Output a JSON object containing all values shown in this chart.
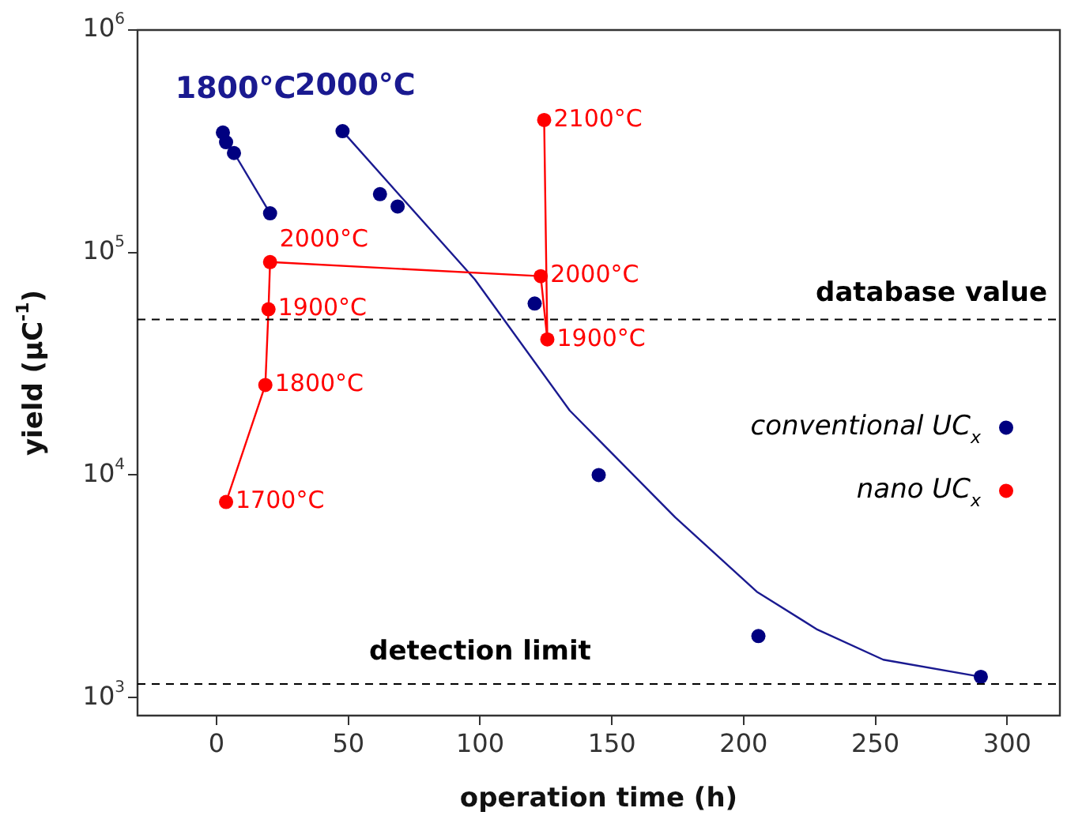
{
  "chart_data": {
    "type": "scatter",
    "xlabel": "operation time (h)",
    "ylabel": "yield (µC$^{-1}$)",
    "xlim": [
      -30,
      320
    ],
    "xticks": [
      0,
      50,
      100,
      150,
      200,
      250,
      300
    ],
    "ylim": [
      830,
      1000000
    ],
    "log": "y",
    "yticks": [
      {
        "value": 1000,
        "label": "10$^{3}$"
      },
      {
        "value": 10000,
        "label": "10$^{4}$"
      },
      {
        "value": 100000,
        "label": "10$^{5}$"
      },
      {
        "value": 1000000,
        "label": "10$^{6}$"
      }
    ],
    "grid": false,
    "legend": "right",
    "series": [
      {
        "name": "conventional UC$_{x}$",
        "marker": "circle",
        "color": "#000080",
        "x": [
          2.4,
          3.6,
          6.6,
          20.3,
          47.8,
          62,
          68.7,
          120.7,
          145,
          205.6,
          290
        ],
        "values": [
          346000,
          313000,
          280000,
          150000,
          351000,
          183000,
          161000,
          59000,
          10000,
          1890,
          1240
        ]
      },
      {
        "name": "nano UC$_{x}$",
        "type": "line",
        "marker": "circle",
        "color": "#ff0000",
        "x": [
          3.6,
          18.5,
          19.7,
          20.3,
          123,
          125.5,
          124.3
        ],
        "values": [
          7570,
          25400,
          55600,
          90600,
          78300,
          40700,
          394000
        ]
      },
      {
        "name": "1800°C",
        "type": "line",
        "marker": "none",
        "color": "#1a1a90",
        "x": [
          2.4,
          20.3
        ],
        "values": [
          340000,
          150000
        ]
      },
      {
        "name": "2000°C",
        "type": "line",
        "marker": "none",
        "color": "#1a1a90",
        "x": [
          47.8,
          70,
          98,
          134,
          174,
          205,
          228,
          253,
          290
        ],
        "values": [
          351000,
          178000,
          75700,
          19500,
          6460,
          2990,
          2020,
          1480,
          1240
        ]
      }
    ],
    "ref_lines": [
      {
        "axis": "y",
        "value": 50000,
        "label": "database value",
        "line_style": "dashed",
        "color": "#000000"
      },
      {
        "axis": "y",
        "value": 1150,
        "label": "detection limit",
        "line_style": "dashed",
        "color": "#000000"
      }
    ],
    "annotations": [
      {
        "text": "1700°C",
        "x": 3.6,
        "y": 7570
      },
      {
        "text": "1800°C",
        "x": 18.5,
        "y": 25400
      },
      {
        "text": "1900°C",
        "x": 19.7,
        "y": 55600
      },
      {
        "text": "2000°C",
        "x": 20.3,
        "y": 90600
      },
      {
        "text": "2000°C",
        "x": 123,
        "y": 78300
      },
      {
        "text": "1900°C",
        "x": 125.5,
        "y": 40700
      },
      {
        "text": "2100°C",
        "x": 124.3,
        "y": 394000
      }
    ]
  }
}
